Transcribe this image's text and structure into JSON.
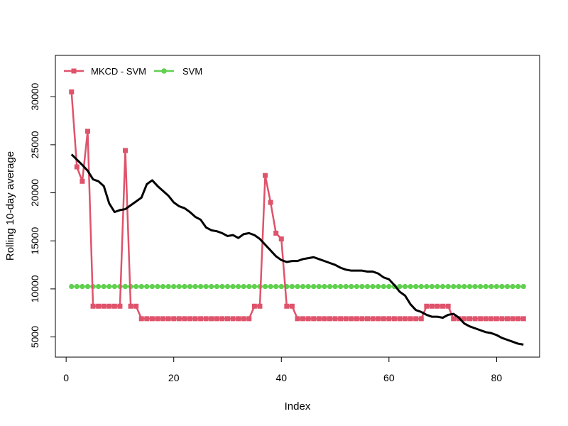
{
  "chart_data": {
    "type": "line",
    "title": "",
    "xlabel": "Index",
    "ylabel": "Rolling 10-day average",
    "xlim": [
      -2,
      88
    ],
    "ylim": [
      2900,
      34300
    ],
    "x_ticks": [
      0,
      20,
      40,
      60,
      80
    ],
    "y_ticks": [
      5000,
      10000,
      15000,
      20000,
      25000,
      30000
    ],
    "grid": false,
    "legend_position": "top-left",
    "legend": [
      {
        "label": "MKCD - SVM",
        "color": "#DF536B",
        "marker": "square"
      },
      {
        "label": "SVM",
        "color": "#61D04F",
        "marker": "circle"
      }
    ],
    "series": [
      {
        "name": "MKCD - SVM",
        "color": "#DF536B",
        "marker": "square",
        "x_start": 1,
        "values": [
          30500,
          22700,
          21200,
          26400,
          8200,
          8200,
          8200,
          8200,
          8200,
          8200,
          24400,
          8200,
          8200,
          6900,
          6900,
          6900,
          6900,
          6900,
          6900,
          6900,
          6900,
          6900,
          6900,
          6900,
          6900,
          6900,
          6900,
          6900,
          6900,
          6900,
          6900,
          6900,
          6900,
          6900,
          8200,
          8200,
          21800,
          19000,
          15800,
          15200,
          8200,
          8200,
          6900,
          6900,
          6900,
          6900,
          6900,
          6900,
          6900,
          6900,
          6900,
          6900,
          6900,
          6900,
          6900,
          6900,
          6900,
          6900,
          6900,
          6900,
          6900,
          6900,
          6900,
          6900,
          6900,
          6900,
          8200,
          8200,
          8200,
          8200,
          8200,
          6900,
          6900,
          6900,
          6900,
          6900,
          6900,
          6900,
          6900,
          6900,
          6900,
          6900,
          6900,
          6900,
          6900
        ]
      },
      {
        "name": "SVM",
        "color": "#61D04F",
        "marker": "circle",
        "x_start": 1,
        "constant_value": 10250,
        "count": 85
      },
      {
        "name": "",
        "color": "#000000",
        "marker": "none",
        "x": [
          1,
          3,
          4,
          5,
          6,
          7,
          8,
          9,
          10,
          11,
          12,
          13,
          14,
          15,
          16,
          17,
          18,
          19,
          20,
          21,
          22,
          23,
          24,
          25,
          26,
          27,
          28,
          29,
          30,
          31,
          32,
          33,
          34,
          35,
          36,
          37,
          38,
          39,
          40,
          41,
          42,
          43,
          44,
          45,
          46,
          47,
          48,
          49,
          50,
          51,
          52,
          53,
          54,
          55,
          56,
          57,
          58,
          59,
          60,
          61,
          62,
          63,
          64,
          65,
          66,
          67,
          68,
          69,
          70,
          71,
          72,
          73,
          74,
          75,
          76,
          77,
          78,
          79,
          80,
          81,
          82,
          83,
          84,
          85
        ],
        "values": [
          24000,
          22900,
          22300,
          21400,
          21200,
          20700,
          18900,
          18000,
          18200,
          18300,
          18700,
          19100,
          19500,
          20900,
          21300,
          20700,
          20200,
          19700,
          19000,
          18600,
          18400,
          18000,
          17500,
          17200,
          16400,
          16100,
          16000,
          15800,
          15500,
          15600,
          15300,
          15700,
          15800,
          15600,
          15200,
          14600,
          14000,
          13400,
          13000,
          12800,
          12900,
          12900,
          13100,
          13200,
          13300,
          13100,
          12900,
          12700,
          12500,
          12200,
          12000,
          11900,
          11900,
          11900,
          11800,
          11800,
          11600,
          11200,
          11000,
          10400,
          9700,
          9300,
          8400,
          7800,
          7600,
          7300,
          7100,
          7100,
          7000,
          7300,
          7400,
          7000,
          6400,
          6100,
          5900,
          5700,
          5500,
          5400,
          5200,
          4900,
          4700,
          4500,
          4300,
          4200
        ]
      }
    ]
  }
}
